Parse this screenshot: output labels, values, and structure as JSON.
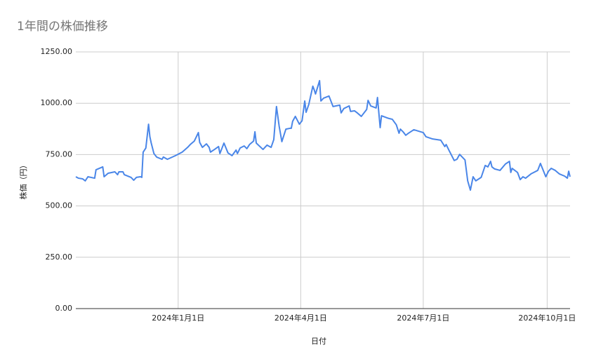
{
  "chart_data": {
    "type": "line",
    "title": "1年間の株価推移",
    "x_label": "日付",
    "y_label": "株価（円）",
    "x": [
      "2023-10-17",
      "2023-10-19",
      "2023-10-22",
      "2023-10-24",
      "2023-10-26",
      "2023-10-31",
      "2023-11-01",
      "2023-11-06",
      "2023-11-07",
      "2023-11-10",
      "2023-11-15",
      "2023-11-17",
      "2023-11-18",
      "2023-11-21",
      "2023-11-22",
      "2023-11-27",
      "2023-11-29",
      "2023-12-01",
      "2023-12-04",
      "2023-12-05",
      "2023-12-06",
      "2023-12-08",
      "2023-12-10",
      "2023-12-11",
      "2023-12-12",
      "2023-12-14",
      "2023-12-16",
      "2023-12-20",
      "2023-12-21",
      "2023-12-24",
      "2023-12-30",
      "2024-01-04",
      "2024-01-08",
      "2024-01-10",
      "2024-01-13",
      "2024-01-16",
      "2024-01-17",
      "2024-01-19",
      "2024-01-22",
      "2024-01-24",
      "2024-01-25",
      "2024-01-28",
      "2024-01-31",
      "2024-02-01",
      "2024-02-04",
      "2024-02-07",
      "2024-02-10",
      "2024-02-13",
      "2024-02-14",
      "2024-02-16",
      "2024-02-19",
      "2024-02-21",
      "2024-02-23",
      "2024-02-26",
      "2024-02-27",
      "2024-02-28",
      "2024-03-04",
      "2024-03-07",
      "2024-03-10",
      "2024-03-12",
      "2024-03-14",
      "2024-03-16",
      "2024-03-18",
      "2024-03-21",
      "2024-03-24",
      "2024-03-25",
      "2024-03-26",
      "2024-03-28",
      "2024-03-31",
      "2024-04-02",
      "2024-04-04",
      "2024-04-05",
      "2024-04-07",
      "2024-04-10",
      "2024-04-11",
      "2024-04-12",
      "2024-04-15",
      "2024-04-16",
      "2024-04-18",
      "2024-04-22",
      "2024-04-25",
      "2024-04-30",
      "2024-05-01",
      "2024-05-03",
      "2024-05-07",
      "2024-05-08",
      "2024-05-11",
      "2024-05-13",
      "2024-05-16",
      "2024-05-20",
      "2024-05-21",
      "2024-05-23",
      "2024-05-27",
      "2024-05-28",
      "2024-05-30",
      "2024-05-31",
      "2024-06-04",
      "2024-06-06",
      "2024-06-08",
      "2024-06-11",
      "2024-06-13",
      "2024-06-14",
      "2024-06-16",
      "2024-06-18",
      "2024-06-20",
      "2024-06-24",
      "2024-07-01",
      "2024-07-03",
      "2024-07-08",
      "2024-07-14",
      "2024-07-17",
      "2024-07-18",
      "2024-07-20",
      "2024-07-24",
      "2024-07-26",
      "2024-07-28",
      "2024-08-01",
      "2024-08-03",
      "2024-08-05",
      "2024-08-07",
      "2024-08-09",
      "2024-08-13",
      "2024-08-16",
      "2024-08-18",
      "2024-08-20",
      "2024-08-21",
      "2024-08-23",
      "2024-08-27",
      "2024-08-31",
      "2024-09-03",
      "2024-09-04",
      "2024-09-05",
      "2024-09-09",
      "2024-09-11",
      "2024-09-13",
      "2024-09-15",
      "2024-09-19",
      "2024-09-24",
      "2024-09-26",
      "2024-09-30",
      "2024-10-02",
      "2024-10-04",
      "2024-10-07",
      "2024-10-10",
      "2024-10-14",
      "2024-10-16",
      "2024-10-17",
      "2024-10-18"
    ],
    "series": [
      {
        "name": "株価",
        "color": "#4a86e8",
        "values": [
          642,
          635,
          632,
          622,
          642,
          635,
          676,
          690,
          642,
          659,
          666,
          652,
          666,
          666,
          652,
          639,
          625,
          639,
          642,
          639,
          762,
          782,
          898,
          837,
          806,
          755,
          738,
          727,
          738,
          727,
          745,
          762,
          785,
          799,
          816,
          857,
          809,
          785,
          802,
          785,
          762,
          775,
          789,
          755,
          806,
          758,
          745,
          772,
          755,
          782,
          792,
          779,
          799,
          816,
          861,
          806,
          775,
          796,
          785,
          823,
          984,
          888,
          813,
          874,
          878,
          878,
          912,
          936,
          898,
          915,
          1011,
          956,
          994,
          1083,
          1066,
          1045,
          1110,
          1011,
          1025,
          1035,
          984,
          991,
          953,
          974,
          987,
          960,
          963,
          953,
          936,
          970,
          1014,
          987,
          977,
          1028,
          881,
          939,
          929,
          925,
          922,
          895,
          854,
          874,
          861,
          844,
          854,
          871,
          857,
          837,
          826,
          820,
          789,
          799,
          772,
          721,
          727,
          751,
          724,
          622,
          577,
          642,
          622,
          639,
          697,
          690,
          717,
          690,
          680,
          673,
          704,
          717,
          663,
          683,
          663,
          628,
          642,
          635,
          656,
          673,
          707,
          642,
          669,
          683,
          673,
          656,
          645,
          635,
          669,
          642
        ]
      }
    ],
    "xlim": [
      "2023-10-17",
      "2024-10-18"
    ],
    "xticks": [
      {
        "value": "2024-01-01",
        "label": "2024年1月1日"
      },
      {
        "value": "2024-04-01",
        "label": "2024年4月1日"
      },
      {
        "value": "2024-07-01",
        "label": "2024年7月1日"
      },
      {
        "value": "2024-10-01",
        "label": "2024年10月1日"
      }
    ],
    "ylim": [
      0,
      1250
    ],
    "yticks": [
      {
        "value": 0,
        "label": "0.00"
      },
      {
        "value": 250,
        "label": "250.00"
      },
      {
        "value": 500,
        "label": "500.00"
      },
      {
        "value": 750,
        "label": "750.00"
      },
      {
        "value": 1000,
        "label": "1000.00"
      },
      {
        "value": 1250,
        "label": "1250.00"
      }
    ],
    "grid": true
  }
}
